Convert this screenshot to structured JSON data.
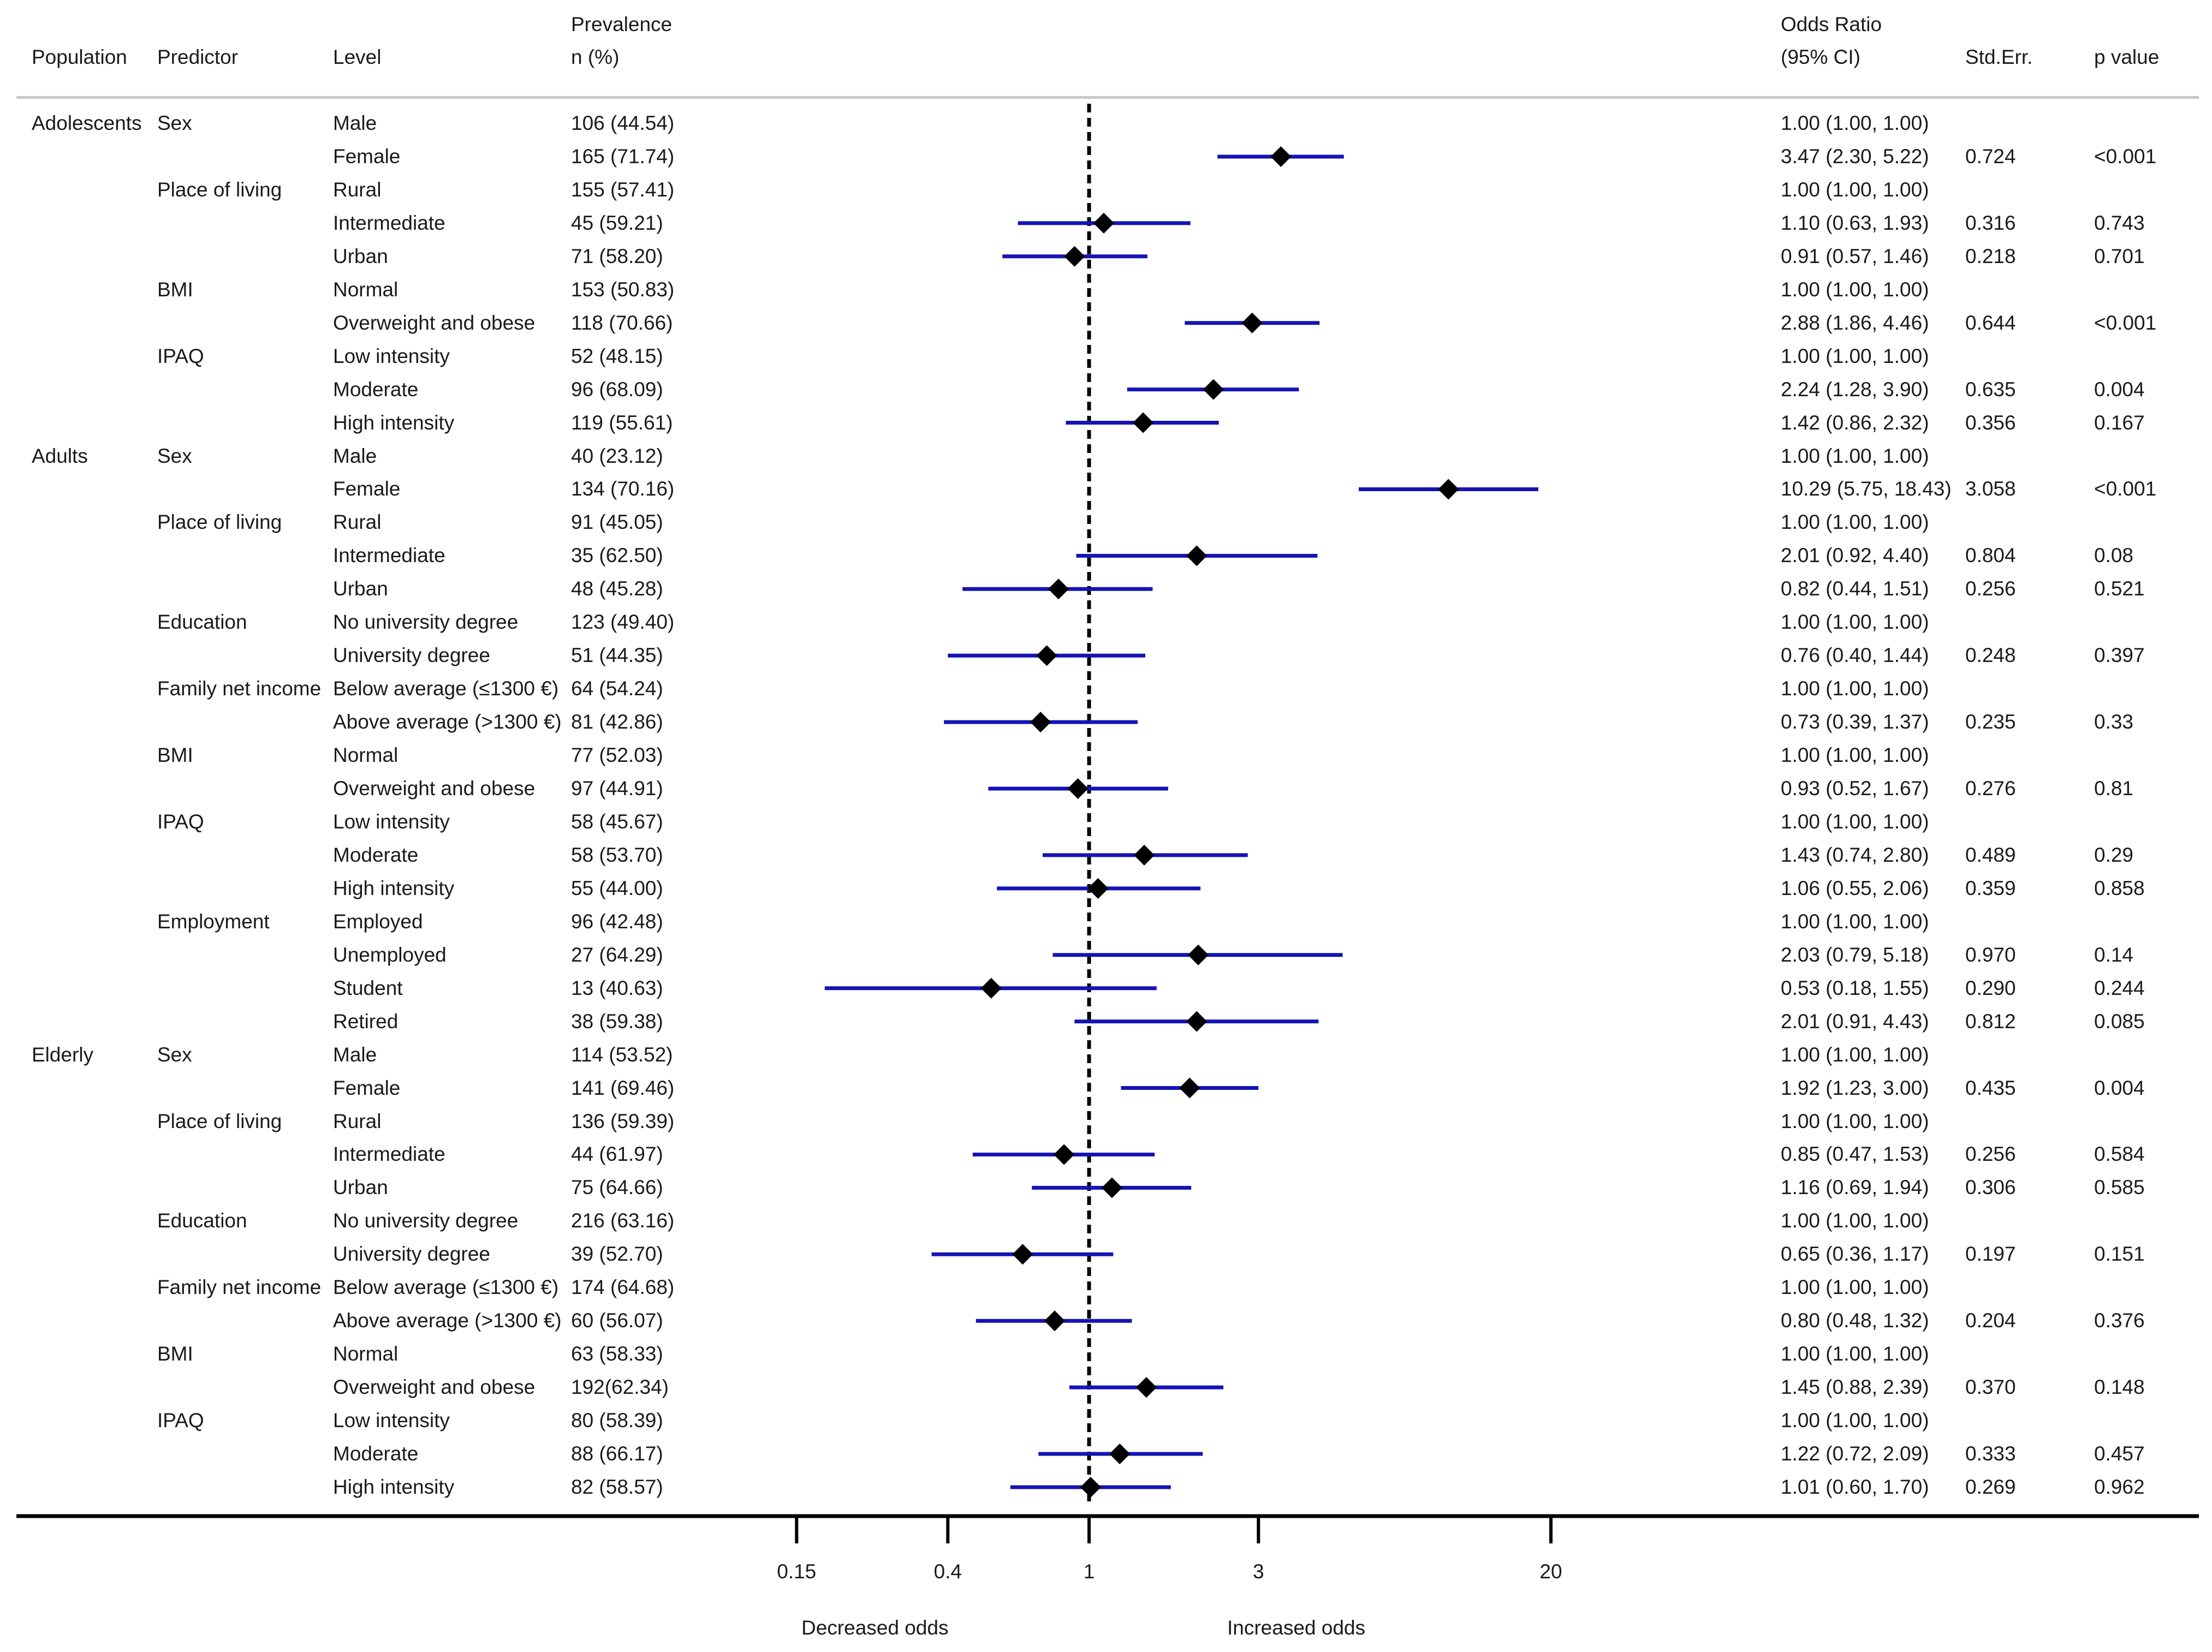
{
  "headers": {
    "population": "Population",
    "predictor": "Predictor",
    "level": "Level",
    "prevalence_line1": "Prevalence",
    "prevalence_line2": "n (%)",
    "or_line1": "Odds Ratio",
    "or_line2": "(95% CI)",
    "stderr": "Std.Err.",
    "pvalue": "p value"
  },
  "axis": {
    "ticks": [
      "0.15",
      "0.4",
      "1",
      "3",
      "20"
    ],
    "decreased_label": "Decreased odds",
    "increased_label": "Increased odds"
  },
  "colors": {
    "ci_line": "#1414b4",
    "marker": "#000000",
    "reference_line": "#000000",
    "rule": "#c8c8c8"
  },
  "chart_data": {
    "type": "forest",
    "scale": "log",
    "reference": 1,
    "xlim": [
      0.15,
      20
    ],
    "rows": [
      {
        "population": "Adolescents",
        "predictor": "Sex",
        "level": "Male",
        "prevalence": "106 (44.54)",
        "or_text": "1.00 (1.00, 1.00)",
        "se": "",
        "p": "",
        "or": null,
        "lo": null,
        "hi": null
      },
      {
        "population": "",
        "predictor": "",
        "level": "Female",
        "prevalence": "165 (71.74)",
        "or_text": "3.47 (2.30, 5.22)",
        "se": "0.724",
        "p": "<0.001",
        "or": 3.47,
        "lo": 2.3,
        "hi": 5.22
      },
      {
        "population": "",
        "predictor": "Place of living",
        "level": "Rural",
        "prevalence": "155 (57.41)",
        "or_text": "1.00 (1.00, 1.00)",
        "se": "",
        "p": "",
        "or": null,
        "lo": null,
        "hi": null
      },
      {
        "population": "",
        "predictor": "",
        "level": "Intermediate",
        "prevalence": "45 (59.21)",
        "or_text": "1.10 (0.63, 1.93)",
        "se": "0.316",
        "p": "0.743",
        "or": 1.1,
        "lo": 0.63,
        "hi": 1.93
      },
      {
        "population": "",
        "predictor": "",
        "level": "Urban",
        "prevalence": "71 (58.20)",
        "or_text": "0.91 (0.57, 1.46)",
        "se": "0.218",
        "p": "0.701",
        "or": 0.91,
        "lo": 0.57,
        "hi": 1.46
      },
      {
        "population": "",
        "predictor": "BMI",
        "level": "Normal",
        "prevalence": "153 (50.83)",
        "or_text": "1.00 (1.00, 1.00)",
        "se": "",
        "p": "",
        "or": null,
        "lo": null,
        "hi": null
      },
      {
        "population": "",
        "predictor": "",
        "level": "Overweight and obese",
        "prevalence": "118 (70.66)",
        "or_text": "2.88 (1.86, 4.46)",
        "se": "0.644",
        "p": "<0.001",
        "or": 2.88,
        "lo": 1.86,
        "hi": 4.46
      },
      {
        "population": "",
        "predictor": "IPAQ",
        "level": "Low intensity",
        "prevalence": "52 (48.15)",
        "or_text": "1.00 (1.00, 1.00)",
        "se": "",
        "p": "",
        "or": null,
        "lo": null,
        "hi": null
      },
      {
        "population": "",
        "predictor": "",
        "level": "Moderate",
        "prevalence": "96 (68.09)",
        "or_text": "2.24 (1.28, 3.90)",
        "se": "0.635",
        "p": "0.004",
        "or": 2.24,
        "lo": 1.28,
        "hi": 3.9
      },
      {
        "population": "",
        "predictor": "",
        "level": "High intensity",
        "prevalence": "119 (55.61)",
        "or_text": "1.42 (0.86, 2.32)",
        "se": "0.356",
        "p": "0.167",
        "or": 1.42,
        "lo": 0.86,
        "hi": 2.32
      },
      {
        "population": "Adults",
        "predictor": "Sex",
        "level": "Male",
        "prevalence": "40 (23.12)",
        "or_text": "1.00 (1.00, 1.00)",
        "se": "",
        "p": "",
        "or": null,
        "lo": null,
        "hi": null
      },
      {
        "population": "",
        "predictor": "",
        "level": "Female",
        "prevalence": "134 (70.16)",
        "or_text": "10.29 (5.75, 18.43)",
        "se": "3.058",
        "p": "<0.001",
        "or": 10.29,
        "lo": 5.75,
        "hi": 18.43
      },
      {
        "population": "",
        "predictor": "Place of living",
        "level": "Rural",
        "prevalence": "91 (45.05)",
        "or_text": "1.00 (1.00, 1.00)",
        "se": "",
        "p": "",
        "or": null,
        "lo": null,
        "hi": null
      },
      {
        "population": "",
        "predictor": "",
        "level": "Intermediate",
        "prevalence": "35 (62.50)",
        "or_text": "2.01 (0.92, 4.40)",
        "se": "0.804",
        "p": "0.08",
        "or": 2.01,
        "lo": 0.92,
        "hi": 4.4
      },
      {
        "population": "",
        "predictor": "",
        "level": "Urban",
        "prevalence": "48 (45.28)",
        "or_text": "0.82 (0.44, 1.51)",
        "se": "0.256",
        "p": "0.521",
        "or": 0.82,
        "lo": 0.44,
        "hi": 1.51
      },
      {
        "population": "",
        "predictor": "Education",
        "level": "No university degree",
        "prevalence": "123 (49.40)",
        "or_text": "1.00 (1.00, 1.00)",
        "se": "",
        "p": "",
        "or": null,
        "lo": null,
        "hi": null
      },
      {
        "population": "",
        "predictor": "",
        "level": "University degree",
        "prevalence": "51 (44.35)",
        "or_text": "0.76 (0.40, 1.44)",
        "se": "0.248",
        "p": "0.397",
        "or": 0.76,
        "lo": 0.4,
        "hi": 1.44
      },
      {
        "population": "",
        "predictor": "Family net income",
        "level": "Below average (≤1300 €)",
        "prevalence": "64 (54.24)",
        "or_text": "1.00 (1.00, 1.00)",
        "se": "",
        "p": "",
        "or": null,
        "lo": null,
        "hi": null
      },
      {
        "population": "",
        "predictor": "",
        "level": "Above average (>1300 €)",
        "prevalence": "81 (42.86)",
        "or_text": "0.73 (0.39, 1.37)",
        "se": "0.235",
        "p": "0.33",
        "or": 0.73,
        "lo": 0.39,
        "hi": 1.37
      },
      {
        "population": "",
        "predictor": "BMI",
        "level": "Normal",
        "prevalence": "77 (52.03)",
        "or_text": "1.00 (1.00, 1.00)",
        "se": "",
        "p": "",
        "or": null,
        "lo": null,
        "hi": null
      },
      {
        "population": "",
        "predictor": "",
        "level": "Overweight and obese",
        "prevalence": "97 (44.91)",
        "or_text": "0.93 (0.52, 1.67)",
        "se": "0.276",
        "p": "0.81",
        "or": 0.93,
        "lo": 0.52,
        "hi": 1.67
      },
      {
        "population": "",
        "predictor": "IPAQ",
        "level": "Low intensity",
        "prevalence": "58 (45.67)",
        "or_text": "1.00 (1.00, 1.00)",
        "se": "",
        "p": "",
        "or": null,
        "lo": null,
        "hi": null
      },
      {
        "population": "",
        "predictor": "",
        "level": "Moderate",
        "prevalence": "58 (53.70)",
        "or_text": "1.43 (0.74, 2.80)",
        "se": "0.489",
        "p": "0.29",
        "or": 1.43,
        "lo": 0.74,
        "hi": 2.8
      },
      {
        "population": "",
        "predictor": "",
        "level": "High intensity",
        "prevalence": "55 (44.00)",
        "or_text": "1.06 (0.55, 2.06)",
        "se": "0.359",
        "p": "0.858",
        "or": 1.06,
        "lo": 0.55,
        "hi": 2.06
      },
      {
        "population": "",
        "predictor": "Employment",
        "level": "Employed",
        "prevalence": "96 (42.48)",
        "or_text": "1.00 (1.00, 1.00)",
        "se": "",
        "p": "",
        "or": null,
        "lo": null,
        "hi": null
      },
      {
        "population": "",
        "predictor": "",
        "level": "Unemployed",
        "prevalence": "27 (64.29)",
        "or_text": "2.03 (0.79, 5.18)",
        "se": "0.970",
        "p": "0.14",
        "or": 2.03,
        "lo": 0.79,
        "hi": 5.18
      },
      {
        "population": "",
        "predictor": "",
        "level": "Student",
        "prevalence": "13 (40.63)",
        "or_text": "0.53 (0.18, 1.55)",
        "se": "0.290",
        "p": "0.244",
        "or": 0.53,
        "lo": 0.18,
        "hi": 1.55
      },
      {
        "population": "",
        "predictor": "",
        "level": "Retired",
        "prevalence": "38 (59.38)",
        "or_text": "2.01 (0.91, 4.43)",
        "se": "0.812",
        "p": "0.085",
        "or": 2.01,
        "lo": 0.91,
        "hi": 4.43
      },
      {
        "population": "Elderly",
        "predictor": "Sex",
        "level": "Male",
        "prevalence": "114 (53.52)",
        "or_text": "1.00 (1.00, 1.00)",
        "se": "",
        "p": "",
        "or": null,
        "lo": null,
        "hi": null
      },
      {
        "population": "",
        "predictor": "",
        "level": "Female",
        "prevalence": "141 (69.46)",
        "or_text": "1.92 (1.23, 3.00)",
        "se": "0.435",
        "p": "0.004",
        "or": 1.92,
        "lo": 1.23,
        "hi": 3.0
      },
      {
        "population": "",
        "predictor": "Place of living",
        "level": "Rural",
        "prevalence": "136 (59.39)",
        "or_text": "1.00 (1.00, 1.00)",
        "se": "",
        "p": "",
        "or": null,
        "lo": null,
        "hi": null
      },
      {
        "population": "",
        "predictor": "",
        "level": "Intermediate",
        "prevalence": "44 (61.97)",
        "or_text": "0.85 (0.47, 1.53)",
        "se": "0.256",
        "p": "0.584",
        "or": 0.85,
        "lo": 0.47,
        "hi": 1.53
      },
      {
        "population": "",
        "predictor": "",
        "level": "Urban",
        "prevalence": "75 (64.66)",
        "or_text": "1.16 (0.69, 1.94)",
        "se": "0.306",
        "p": "0.585",
        "or": 1.16,
        "lo": 0.69,
        "hi": 1.94
      },
      {
        "population": "",
        "predictor": "Education",
        "level": "No university degree",
        "prevalence": "216 (63.16)",
        "or_text": "1.00 (1.00, 1.00)",
        "se": "",
        "p": "",
        "or": null,
        "lo": null,
        "hi": null
      },
      {
        "population": "",
        "predictor": "",
        "level": "University degree",
        "prevalence": "39 (52.70)",
        "or_text": "0.65 (0.36, 1.17)",
        "se": "0.197",
        "p": "0.151",
        "or": 0.65,
        "lo": 0.36,
        "hi": 1.17
      },
      {
        "population": "",
        "predictor": "Family net income",
        "level": "Below average (≤1300 €)",
        "prevalence": "174 (64.68)",
        "or_text": "1.00 (1.00, 1.00)",
        "se": "",
        "p": "",
        "or": null,
        "lo": null,
        "hi": null
      },
      {
        "population": "",
        "predictor": "",
        "level": "Above average (>1300 €)",
        "prevalence": "60 (56.07)",
        "or_text": "0.80 (0.48, 1.32)",
        "se": "0.204",
        "p": "0.376",
        "or": 0.8,
        "lo": 0.48,
        "hi": 1.32
      },
      {
        "population": "",
        "predictor": "BMI",
        "level": "Normal",
        "prevalence": "63 (58.33)",
        "or_text": "1.00 (1.00, 1.00)",
        "se": "",
        "p": "",
        "or": null,
        "lo": null,
        "hi": null
      },
      {
        "population": "",
        "predictor": "",
        "level": "Overweight and obese",
        "prevalence": "192(62.34)",
        "or_text": "1.45 (0.88, 2.39)",
        "se": "0.370",
        "p": "0.148",
        "or": 1.45,
        "lo": 0.88,
        "hi": 2.39
      },
      {
        "population": "",
        "predictor": "IPAQ",
        "level": "Low intensity",
        "prevalence": "80 (58.39)",
        "or_text": "1.00 (1.00, 1.00)",
        "se": "",
        "p": "",
        "or": null,
        "lo": null,
        "hi": null
      },
      {
        "population": "",
        "predictor": "",
        "level": "Moderate",
        "prevalence": "88 (66.17)",
        "or_text": "1.22 (0.72, 2.09)",
        "se": "0.333",
        "p": "0.457",
        "or": 1.22,
        "lo": 0.72,
        "hi": 2.09
      },
      {
        "population": "",
        "predictor": "",
        "level": "High intensity",
        "prevalence": "82 (58.57)",
        "or_text": "1.01 (0.60, 1.70)",
        "se": "0.269",
        "p": "0.962",
        "or": 1.01,
        "lo": 0.6,
        "hi": 1.7
      }
    ]
  }
}
